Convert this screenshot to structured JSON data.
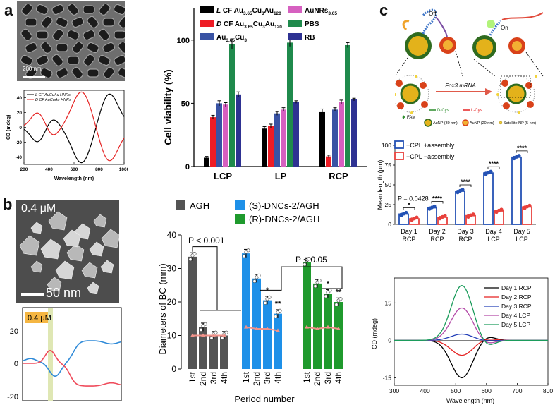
{
  "panel_labels": {
    "a": "a",
    "b": "b",
    "c": "c"
  },
  "panel_a": {
    "tem": {
      "scale": "200 nm"
    },
    "cd_inset": {
      "legend": [
        "L CF AuCuAu HNRs",
        "D CF AuCuAu HNRs"
      ],
      "ylabel": "CD (mdeg)",
      "xlabel": "Wavelength (nm)",
      "yticks": [
        "40",
        "20",
        "0",
        "-20",
        "-40"
      ],
      "xticks": [
        "200",
        "400",
        "600",
        "800",
        "1000"
      ]
    }
  },
  "panel_b": {
    "sem": {
      "concentration": "0.4 μM",
      "scale": "50 nm"
    },
    "spectrum_inset": {
      "concentration": "0.4 μM",
      "yticks": [
        "20",
        "0",
        "-20"
      ]
    }
  },
  "panel_c": {
    "schematic": {
      "off_label": "Off",
      "on_label": "On",
      "mrna_label": "Fox3 mRNA",
      "legend": {
        "fam": "FAM",
        "d_cys": "D-Cys",
        "l_cys": "L-Cys",
        "aunp30": "AuNP (30 nm)",
        "aunp20": "AuNP (20 nm)",
        "satellite": "Satellite NP (5 nm)"
      }
    }
  },
  "chart_data": [
    {
      "id": "panel-a-cell-viability",
      "type": "bar",
      "ylabel": "Cell viability (%)",
      "ylim": [
        0,
        125
      ],
      "yticks": [
        0,
        50,
        100
      ],
      "categories": [
        "LCP",
        "LP",
        "RCP"
      ],
      "series": [
        {
          "name": "L CF Au3.65Cu3Au120",
          "prefix": "L",
          "base": "CF Au",
          "sub1": "3.65",
          "mid": "Cu",
          "sub2": "3",
          "end": "Au",
          "sub3": "120",
          "color": "#000000",
          "values": [
            7,
            30,
            43
          ],
          "errors": [
            1,
            1.5,
            2.5
          ]
        },
        {
          "name": "D CF Au3.65Cu3Au120",
          "prefix": "D",
          "base": "CF Au",
          "sub1": "3.65",
          "mid": "Cu",
          "sub2": "3",
          "end": "Au",
          "sub3": "120",
          "color": "#ee1c25",
          "values": [
            39,
            32,
            8
          ],
          "errors": [
            1.5,
            1.5,
            1
          ]
        },
        {
          "name": "Au3.65Cu3",
          "prefix": "",
          "base": "Au",
          "sub1": "3.65",
          "mid": "Cu",
          "sub2": "3",
          "end": "",
          "sub3": "",
          "color": "#3953a4",
          "values": [
            50,
            42,
            45
          ],
          "errors": [
            2,
            1.5,
            1.5
          ]
        },
        {
          "name": "AuNRs3.65",
          "prefix": "",
          "base": "AuNRs",
          "sub1": "3.65",
          "mid": "",
          "sub2": "",
          "end": "",
          "sub3": "",
          "color": "#d660c0",
          "values": [
            49,
            45,
            51
          ],
          "errors": [
            1.5,
            1.5,
            1.5
          ]
        },
        {
          "name": "PBS",
          "prefix": "",
          "base": "PBS",
          "sub1": "",
          "mid": "",
          "sub2": "",
          "end": "",
          "sub3": "",
          "color": "#1f8a4c",
          "values": [
            97,
            98,
            96
          ],
          "errors": [
            4,
            3,
            2
          ]
        },
        {
          "name": "RB",
          "prefix": "",
          "base": "RB",
          "sub1": "",
          "mid": "",
          "sub2": "",
          "end": "",
          "sub3": "",
          "color": "#2e3292",
          "values": [
            57,
            51,
            53
          ],
          "errors": [
            2,
            1,
            1
          ]
        }
      ]
    },
    {
      "id": "panel-b-diameters",
      "type": "bar",
      "ylabel": "Diameters of BC (mm)",
      "xlabel": "Period number",
      "ylim": [
        0,
        40
      ],
      "yticks": [
        0,
        10,
        20,
        30,
        40
      ],
      "period_labels": [
        "1st",
        "2nd",
        "3rd",
        "4th"
      ],
      "groups": [
        {
          "name": "AGH",
          "color": "#545454",
          "values": [
            33.5,
            12.5,
            10,
            10
          ],
          "stars": [
            "",
            "",
            "",
            ""
          ],
          "trend": [
            10,
            10,
            10,
            10
          ]
        },
        {
          "name": "(S)-DNCs-2/AGH",
          "color": "#1e90e8",
          "values": [
            34.5,
            27,
            20.5,
            16.5
          ],
          "stars": [
            "",
            "",
            "*",
            "**"
          ],
          "trend": [
            12.5,
            12,
            12,
            11.5
          ]
        },
        {
          "name": "(R)-DNCs-2/AGH",
          "color": "#1f9a2d",
          "values": [
            32,
            25.5,
            22.5,
            20
          ],
          "stars": [
            "",
            "",
            "*",
            "**"
          ],
          "trend": [
            12.5,
            12,
            12.5,
            12
          ]
        }
      ],
      "annotations": [
        {
          "text": "P < 0.001"
        },
        {
          "text": "P < 0.05"
        }
      ]
    },
    {
      "id": "panel-c-mean-length",
      "type": "bar",
      "ylabel": "Mean length (μm)",
      "ylim": [
        0,
        100
      ],
      "yticks": [
        0,
        25,
        50,
        75,
        100
      ],
      "categories": [
        [
          "Day 1",
          "RCP"
        ],
        [
          "Day 2",
          "RCP"
        ],
        [
          "Day 3",
          "RCP"
        ],
        [
          "Day 4",
          "LCP"
        ],
        [
          "Day 5",
          "LCP"
        ]
      ],
      "series": [
        {
          "name": "+CPL +assembly",
          "color": "#2452b5",
          "values": [
            13,
            21,
            42,
            65,
            85
          ]
        },
        {
          "name": "−CPL −assembly",
          "color": "#e8413c",
          "values": [
            7,
            9,
            11,
            17,
            22
          ]
        }
      ],
      "annotations": [
        "*",
        "****",
        "****",
        "****",
        "****"
      ],
      "p_value": "P = 0.0428"
    },
    {
      "id": "panel-c-cd-spectra",
      "type": "line",
      "ylabel": "CD (mdeg)",
      "xlabel": "Wavelength (nm)",
      "xlim": [
        300,
        800
      ],
      "ylim": [
        -18,
        25
      ],
      "xticks": [
        300,
        400,
        500,
        600,
        700,
        800
      ],
      "yticks": [
        -15,
        0,
        15
      ],
      "series": [
        {
          "name": "Day 1 RCP",
          "color": "#000000",
          "amp": -15
        },
        {
          "name": "Day 2 RCP",
          "color": "#e52222",
          "amp": -6
        },
        {
          "name": "Day 3 RCP",
          "color": "#2440b8",
          "amp": 2.5
        },
        {
          "name": "Day 4 LCP",
          "color": "#b34aa8",
          "amp": 13
        },
        {
          "name": "Day 5 LCP",
          "color": "#1c9c5c",
          "amp": 22
        }
      ]
    },
    {
      "id": "panel-a-cd-inset",
      "type": "line",
      "xlim": [
        200,
        1000
      ],
      "ylim": [
        -50,
        50
      ],
      "series": [
        {
          "name": "L CF AuCuAu HNRs",
          "color": "#000000"
        },
        {
          "name": "D CF AuCuAu HNRs",
          "color": "#e52222"
        }
      ]
    }
  ]
}
